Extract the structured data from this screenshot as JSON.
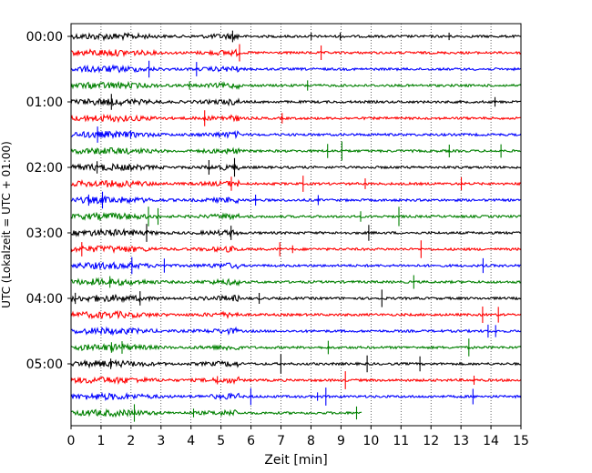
{
  "chart_data": {
    "type": "line",
    "xlabel": "Zeit  [min]",
    "ylabel": "UTC (Lokalzeit = UTC + 01:00)",
    "xlim": [
      0,
      15
    ],
    "x_ticks": [
      "0",
      "1",
      "2",
      "3",
      "4",
      "5",
      "6",
      "7",
      "8",
      "9",
      "10",
      "11",
      "12",
      "13",
      "14",
      "15"
    ],
    "y_ticks": [
      "00:00",
      "01:00",
      "02:00",
      "03:00",
      "04:00",
      "05:00"
    ],
    "grid": "vertical dotted",
    "colors": [
      "#000000",
      "#ff0000",
      "#0000ff",
      "#008000"
    ],
    "trace_interval_min": 15,
    "traces": [
      {
        "start": "00:00",
        "color": "#000000",
        "end_min": 15
      },
      {
        "start": "00:15",
        "color": "#ff0000",
        "end_min": 15
      },
      {
        "start": "00:30",
        "color": "#0000ff",
        "end_min": 15
      },
      {
        "start": "00:45",
        "color": "#008000",
        "end_min": 15
      },
      {
        "start": "01:00",
        "color": "#000000",
        "end_min": 15
      },
      {
        "start": "01:15",
        "color": "#ff0000",
        "end_min": 15
      },
      {
        "start": "01:30",
        "color": "#0000ff",
        "end_min": 15
      },
      {
        "start": "01:45",
        "color": "#008000",
        "end_min": 15
      },
      {
        "start": "02:00",
        "color": "#000000",
        "end_min": 15
      },
      {
        "start": "02:15",
        "color": "#ff0000",
        "end_min": 15
      },
      {
        "start": "02:30",
        "color": "#0000ff",
        "end_min": 15
      },
      {
        "start": "02:45",
        "color": "#008000",
        "end_min": 15
      },
      {
        "start": "03:00",
        "color": "#000000",
        "end_min": 15
      },
      {
        "start": "03:15",
        "color": "#ff0000",
        "end_min": 15
      },
      {
        "start": "03:30",
        "color": "#0000ff",
        "end_min": 15
      },
      {
        "start": "03:45",
        "color": "#008000",
        "end_min": 15
      },
      {
        "start": "04:00",
        "color": "#000000",
        "end_min": 15
      },
      {
        "start": "04:15",
        "color": "#ff0000",
        "end_min": 15
      },
      {
        "start": "04:30",
        "color": "#0000ff",
        "end_min": 15
      },
      {
        "start": "04:45",
        "color": "#008000",
        "end_min": 15
      },
      {
        "start": "05:00",
        "color": "#000000",
        "end_min": 15
      },
      {
        "start": "05:15",
        "color": "#ff0000",
        "end_min": 15
      },
      {
        "start": "05:30",
        "color": "#0000ff",
        "end_min": 15
      },
      {
        "start": "05:45",
        "color": "#008000",
        "end_min": 9.7
      }
    ]
  }
}
